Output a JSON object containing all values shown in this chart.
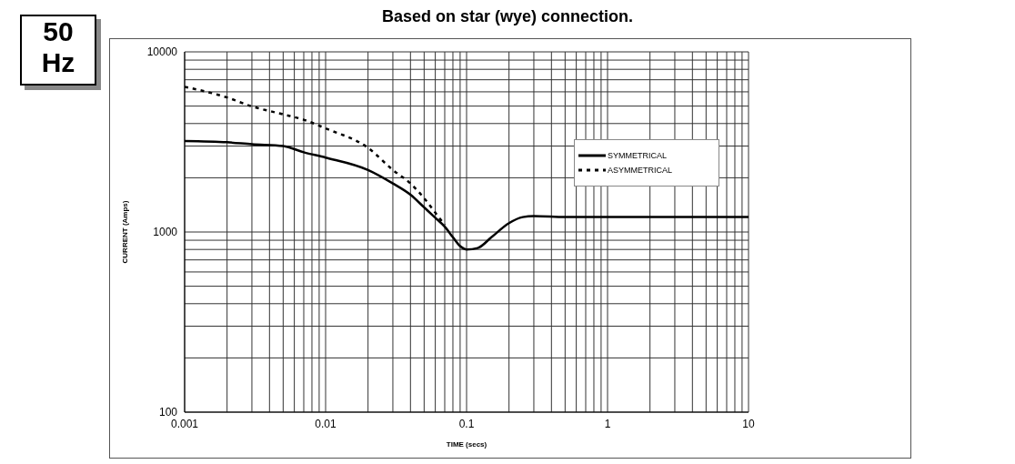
{
  "chart_data": {
    "type": "line",
    "title": "Based on star (wye) connection.",
    "xlabel": "TIME (secs)",
    "ylabel": "CURRENT (Amps)",
    "annotations": [
      "50\nHz"
    ],
    "log": "xy",
    "grid": true,
    "legend": "top right",
    "xlim": [
      0.001,
      10
    ],
    "ylim": [
      100,
      10000
    ],
    "xticks": [
      0.001,
      {
        "value": 0.002,
        "label": null
      },
      {
        "value": 0.003,
        "label": null
      },
      {
        "value": 0.004,
        "label": null
      },
      {
        "value": 0.005,
        "label": null
      },
      {
        "value": 0.006,
        "label": null
      },
      {
        "value": 0.007,
        "label": null
      },
      {
        "value": 0.008,
        "label": null
      },
      {
        "value": 0.009,
        "label": null
      },
      0.01,
      {
        "value": 0.02,
        "label": null
      },
      {
        "value": 0.03,
        "label": null
      },
      {
        "value": 0.04,
        "label": null
      },
      {
        "value": 0.05,
        "label": null
      },
      {
        "value": 0.06,
        "label": null
      },
      {
        "value": 0.07,
        "label": null
      },
      {
        "value": 0.08,
        "label": null
      },
      {
        "value": 0.09,
        "label": null
      },
      0.1,
      {
        "value": 0.2,
        "label": null
      },
      {
        "value": 0.3,
        "label": null
      },
      {
        "value": 0.4,
        "label": null
      },
      {
        "value": 0.5,
        "label": null
      },
      {
        "value": 0.6,
        "label": null
      },
      {
        "value": 0.7,
        "label": null
      },
      {
        "value": 0.8,
        "label": null
      },
      {
        "value": 0.9,
        "label": null
      },
      1,
      {
        "value": 2,
        "label": null
      },
      {
        "value": 3,
        "label": null
      },
      {
        "value": 4,
        "label": null
      },
      {
        "value": 5,
        "label": null
      },
      {
        "value": 6,
        "label": null
      },
      {
        "value": 7,
        "label": null
      },
      {
        "value": 8,
        "label": null
      },
      {
        "value": 9,
        "label": null
      },
      10
    ],
    "yticks": [
      100,
      {
        "value": 200,
        "label": null
      },
      {
        "value": 300,
        "label": null
      },
      {
        "value": 400,
        "label": null
      },
      {
        "value": 500,
        "label": null
      },
      {
        "value": 600,
        "label": null
      },
      {
        "value": 700,
        "label": null
      },
      {
        "value": 800,
        "label": null
      },
      {
        "value": 900,
        "label": null
      },
      1000,
      {
        "value": 2000,
        "label": null
      },
      {
        "value": 3000,
        "label": null
      },
      {
        "value": 4000,
        "label": null
      },
      {
        "value": 5000,
        "label": null
      },
      {
        "value": 6000,
        "label": null
      },
      {
        "value": 7000,
        "label": null
      },
      {
        "value": 8000,
        "label": null
      },
      {
        "value": 9000,
        "label": null
      },
      10000
    ],
    "series": [
      {
        "name": "SYMMETRICAL",
        "color": "#000000",
        "line_style": "solid",
        "x": [
          0.001,
          0.002,
          0.003,
          0.005,
          0.007,
          0.01,
          0.02,
          0.03,
          0.04,
          0.05,
          0.06,
          0.07,
          0.08,
          0.09,
          0.1,
          0.12,
          0.15,
          0.2,
          0.25,
          0.3,
          0.5,
          10
        ],
        "values": [
          3200,
          3150,
          3070,
          3000,
          2770,
          2590,
          2210,
          1860,
          1610,
          1370,
          1200,
          1070,
          935,
          835,
          800,
          815,
          935,
          1120,
          1210,
          1225,
          1210,
          1210
        ]
      },
      {
        "name": "ASYMMETRICAL",
        "color": "#000000",
        "line_style": "dotted",
        "x": [
          0.001,
          0.002,
          0.003,
          0.005,
          0.007,
          0.01,
          0.02,
          0.03,
          0.04,
          0.05,
          0.06,
          0.07
        ],
        "values": [
          6400,
          5580,
          4980,
          4500,
          4200,
          3760,
          2930,
          2210,
          1860,
          1540,
          1280,
          1095
        ]
      }
    ]
  }
}
